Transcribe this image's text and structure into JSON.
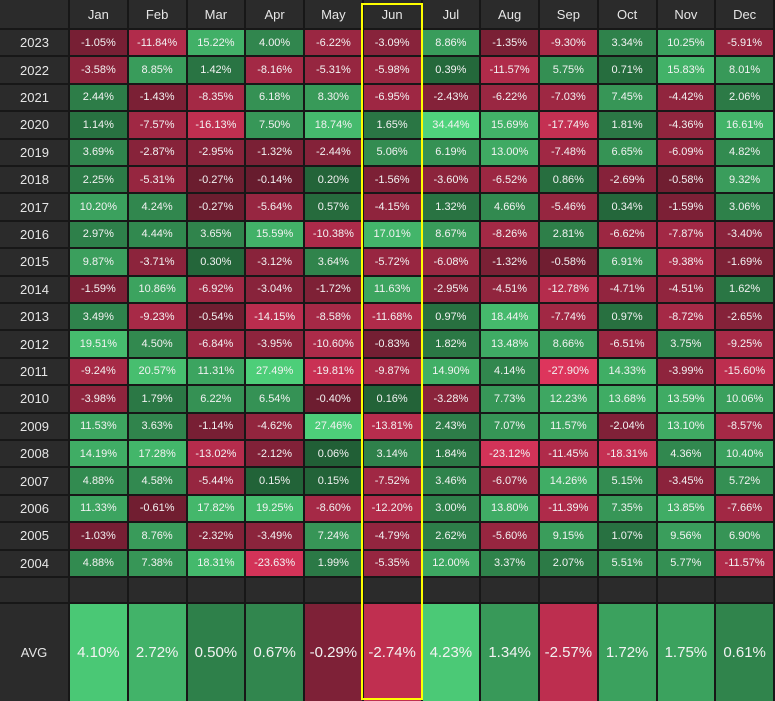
{
  "chart_data": {
    "type": "heatmap",
    "title": "",
    "months": [
      "Jan",
      "Feb",
      "Mar",
      "Apr",
      "May",
      "Jun",
      "Jul",
      "Aug",
      "Sep",
      "Oct",
      "Nov",
      "Dec"
    ],
    "highlighted_month": "Jun",
    "rows": [
      {
        "year": "2023",
        "values": [
          -1.05,
          -11.84,
          15.22,
          4.0,
          -6.22,
          -3.09,
          8.86,
          -1.35,
          -9.3,
          3.34,
          10.25,
          -5.91
        ]
      },
      {
        "year": "2022",
        "values": [
          -3.58,
          8.85,
          1.42,
          -8.16,
          -5.31,
          -5.98,
          0.39,
          -11.57,
          5.75,
          0.71,
          15.83,
          8.01
        ]
      },
      {
        "year": "2021",
        "values": [
          2.44,
          -1.43,
          -8.35,
          6.18,
          8.3,
          -6.95,
          -2.43,
          -6.22,
          -7.03,
          7.45,
          -4.42,
          2.06
        ]
      },
      {
        "year": "2020",
        "values": [
          1.14,
          -7.57,
          -16.13,
          7.5,
          18.74,
          1.65,
          34.44,
          15.69,
          -17.74,
          1.81,
          -4.36,
          16.61
        ]
      },
      {
        "year": "2019",
        "values": [
          3.69,
          -2.87,
          -2.95,
          -1.32,
          -2.44,
          5.06,
          6.19,
          13.0,
          -7.48,
          6.65,
          -6.09,
          4.82
        ]
      },
      {
        "year": "2018",
        "values": [
          2.25,
          -5.31,
          -0.27,
          -0.14,
          0.2,
          -1.56,
          -3.6,
          -6.52,
          0.86,
          -2.69,
          -0.58,
          9.32
        ]
      },
      {
        "year": "2017",
        "values": [
          10.2,
          4.24,
          -0.27,
          -5.64,
          0.57,
          -4.15,
          1.32,
          4.66,
          -5.46,
          0.34,
          -1.59,
          3.06
        ]
      },
      {
        "year": "2016",
        "values": [
          2.97,
          4.44,
          3.65,
          15.59,
          -10.38,
          17.01,
          8.67,
          -8.26,
          2.81,
          -6.62,
          -7.87,
          -3.4
        ]
      },
      {
        "year": "2015",
        "values": [
          9.87,
          -3.71,
          0.3,
          -3.12,
          3.64,
          -5.72,
          -6.08,
          -1.32,
          -0.58,
          6.91,
          -9.38,
          -1.69
        ]
      },
      {
        "year": "2014",
        "values": [
          -1.59,
          10.86,
          -6.92,
          -3.04,
          -1.72,
          11.63,
          -2.95,
          -4.51,
          -12.78,
          -4.71,
          -4.51,
          1.62
        ]
      },
      {
        "year": "2013",
        "values": [
          3.49,
          -9.23,
          -0.54,
          -14.15,
          -8.58,
          -11.68,
          0.97,
          18.44,
          -7.74,
          0.97,
          -8.72,
          -2.65
        ]
      },
      {
        "year": "2012",
        "values": [
          19.51,
          4.5,
          -6.84,
          -3.95,
          -10.6,
          -0.83,
          1.82,
          13.48,
          8.66,
          -6.51,
          3.75,
          -9.25
        ]
      },
      {
        "year": "2011",
        "values": [
          -9.24,
          20.57,
          11.31,
          27.49,
          -19.81,
          -9.87,
          14.9,
          4.14,
          -27.9,
          14.33,
          -3.99,
          -15.6
        ]
      },
      {
        "year": "2010",
        "values": [
          -3.98,
          1.79,
          6.22,
          6.54,
          -0.4,
          0.16,
          -3.28,
          7.73,
          12.23,
          13.68,
          13.59,
          10.06
        ]
      },
      {
        "year": "2009",
        "values": [
          11.53,
          3.63,
          -1.14,
          -4.62,
          27.46,
          -13.81,
          2.43,
          7.07,
          11.57,
          -2.04,
          13.1,
          -8.57
        ]
      },
      {
        "year": "2008",
        "values": [
          14.19,
          17.28,
          -13.02,
          -2.12,
          0.06,
          3.14,
          1.84,
          -23.12,
          -11.45,
          -18.31,
          4.36,
          10.4
        ]
      },
      {
        "year": "2007",
        "values": [
          4.88,
          4.58,
          -5.44,
          0.15,
          0.15,
          -7.52,
          3.46,
          -6.07,
          14.26,
          5.15,
          -3.45,
          5.72
        ]
      },
      {
        "year": "2006",
        "values": [
          11.33,
          -0.61,
          17.82,
          19.25,
          -8.6,
          -12.2,
          3.0,
          13.8,
          -11.39,
          7.35,
          13.85,
          -7.66
        ]
      },
      {
        "year": "2005",
        "values": [
          -1.03,
          8.76,
          -2.32,
          -3.49,
          7.24,
          -4.79,
          2.62,
          -5.6,
          9.15,
          1.07,
          9.56,
          6.9
        ]
      },
      {
        "year": "2004",
        "values": [
          4.88,
          7.38,
          18.31,
          -23.63,
          1.99,
          -5.35,
          12.0,
          3.37,
          2.07,
          5.51,
          5.77,
          -11.57
        ]
      }
    ],
    "avg_label": "AVG",
    "avg_values": [
      4.1,
      2.72,
      0.5,
      0.67,
      -0.29,
      -2.74,
      4.23,
      1.34,
      -2.57,
      1.72,
      1.75,
      0.61
    ],
    "colors": {
      "background": "#171717",
      "header_cell": "#2b2b2b",
      "positive_dark": "#1f5a33",
      "positive_light": "#4fd37c",
      "negative_dark": "#5e1a2a",
      "negative_light": "#e2365e",
      "highlight_border": "#ffff00"
    }
  }
}
